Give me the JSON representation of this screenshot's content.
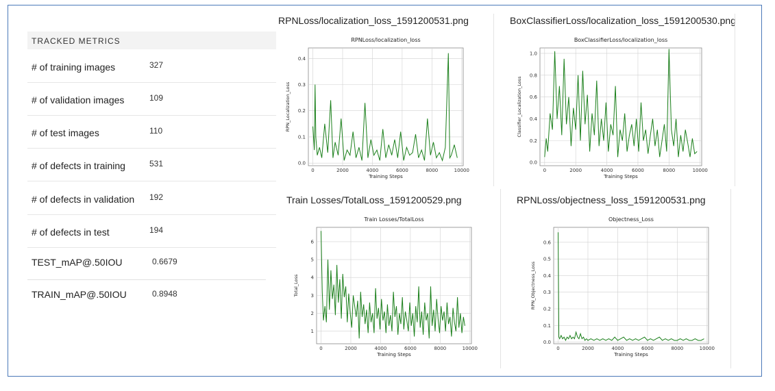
{
  "metrics": {
    "header": "TRACKED METRICS",
    "rows": [
      {
        "label": "# of training images",
        "value": "327"
      },
      {
        "label": "# of validation images",
        "value": "109"
      },
      {
        "label": "# of test images",
        "value": "110"
      },
      {
        "label": "# of defects in training",
        "value": "531"
      },
      {
        "label": "# of defects in validation",
        "value": "192"
      },
      {
        "label": "# of defects in test",
        "value": "194"
      }
    ],
    "map_rows": [
      {
        "label": "TEST_mAP@.50IOU",
        "value": "0.6679"
      },
      {
        "label": "TRAIN_mAP@.50IOU",
        "value": "0.8948"
      }
    ]
  },
  "panels": [
    {
      "filename": "RPNLoss/localization_loss_1591200531.png"
    },
    {
      "filename": "BoxClassifierLoss/localization_loss_1591200530.png"
    },
    {
      "filename": "Train Losses/TotalLoss_1591200529.png"
    },
    {
      "filename": "RPNLoss/objectness_loss_1591200531.png"
    }
  ],
  "colors": {
    "line": "#1a7f1a",
    "frame": "#4a78b8",
    "grid": "#d0d0d0"
  },
  "chart_data": [
    {
      "type": "line",
      "title": "RPNLoss/localization_loss",
      "xlabel": "Training Steps",
      "ylabel": "RPN_Localization_Loss",
      "xlim": [
        -300,
        10100
      ],
      "ylim": [
        -0.01,
        0.44
      ],
      "xticks": [
        0,
        2000,
        4000,
        6000,
        8000,
        10000
      ],
      "yticks": [
        0.0,
        0.1,
        0.2,
        0.3,
        0.4
      ],
      "ytick_labels": [
        "0.0",
        "0.1",
        "0.2",
        "0.3",
        "0.4"
      ],
      "grid": true,
      "series": [
        {
          "x": [
            0,
            100,
            150,
            200,
            300,
            450,
            600,
            800,
            1000,
            1200,
            1350,
            1500,
            1700,
            1900,
            2100,
            2300,
            2500,
            2700,
            2900,
            3100,
            3300,
            3500,
            3700,
            3900,
            4100,
            4300,
            4500,
            4700,
            4900,
            5100,
            5300,
            5500,
            5700,
            5900,
            6100,
            6300,
            6500,
            6700,
            6900,
            7100,
            7300,
            7500,
            7700,
            7900,
            8100,
            8300,
            8500,
            8700,
            8900,
            9100,
            9200,
            9300,
            9500,
            9700
          ],
          "y": [
            0.14,
            0.05,
            0.3,
            0.1,
            0.03,
            0.06,
            0.02,
            0.15,
            0.04,
            0.24,
            0.02,
            0.08,
            0.03,
            0.17,
            0.01,
            0.05,
            0.03,
            0.12,
            0.02,
            0.06,
            0.01,
            0.23,
            0.02,
            0.09,
            0.03,
            0.05,
            0.01,
            0.13,
            0.02,
            0.07,
            0.03,
            0.09,
            0.02,
            0.12,
            0.01,
            0.06,
            0.03,
            0.04,
            0.11,
            0.02,
            0.05,
            0.01,
            0.17,
            0.03,
            0.08,
            0.02,
            0.04,
            0.01,
            0.06,
            0.42,
            0.02,
            0.03,
            0.07,
            0.02
          ]
        }
      ]
    },
    {
      "type": "line",
      "title": "BoxClassifierLoss/localization_loss",
      "xlabel": "Training Steps",
      "ylabel": "Classifier_Localization_Loss",
      "xlim": [
        -300,
        10100
      ],
      "ylim": [
        -0.03,
        1.05
      ],
      "xticks": [
        0,
        2000,
        4000,
        6000,
        8000,
        10000
      ],
      "yticks": [
        0.0,
        0.2,
        0.4,
        0.6,
        0.8,
        1.0
      ],
      "ytick_labels": [
        "0.0",
        "0.2",
        "0.4",
        "0.6",
        "0.8",
        "1.0"
      ],
      "grid": true,
      "series": [
        {
          "x": [
            0,
            100,
            200,
            350,
            500,
            650,
            800,
            950,
            1100,
            1250,
            1400,
            1550,
            1700,
            1850,
            2000,
            2150,
            2300,
            2450,
            2600,
            2750,
            2900,
            3050,
            3200,
            3350,
            3500,
            3650,
            3800,
            3950,
            4100,
            4250,
            4400,
            4550,
            4700,
            4850,
            5000,
            5150,
            5300,
            5450,
            5600,
            5750,
            5900,
            6050,
            6200,
            6350,
            6500,
            6650,
            6800,
            6950,
            7100,
            7250,
            7400,
            7550,
            7700,
            7850,
            8000,
            8150,
            8300,
            8450,
            8600,
            8750,
            8900,
            9050,
            9200,
            9350,
            9500,
            9650,
            9800
          ],
          "y": [
            0.05,
            0.22,
            0.1,
            0.45,
            0.3,
            1.02,
            0.4,
            0.7,
            0.25,
            0.95,
            0.35,
            0.6,
            0.15,
            0.5,
            0.3,
            0.8,
            0.2,
            0.84,
            0.35,
            0.62,
            0.1,
            0.45,
            0.25,
            0.75,
            0.15,
            0.4,
            0.2,
            0.55,
            0.1,
            0.35,
            0.25,
            0.7,
            0.05,
            0.3,
            0.2,
            0.45,
            0.1,
            0.25,
            0.35,
            0.15,
            0.4,
            0.1,
            0.55,
            0.2,
            0.3,
            0.08,
            0.25,
            0.4,
            0.15,
            0.3,
            0.05,
            0.2,
            0.35,
            0.1,
            1.04,
            0.3,
            0.15,
            0.4,
            0.05,
            0.25,
            0.1,
            0.3,
            0.18,
            0.05,
            0.22,
            0.08,
            0.1
          ]
        }
      ]
    },
    {
      "type": "line",
      "title": "Train Losses/TotalLoss",
      "xlabel": "Training Steps",
      "ylabel": "Total_Loss",
      "xlim": [
        -300,
        10100
      ],
      "ylim": [
        0.3,
        6.8
      ],
      "xticks": [
        0,
        2000,
        4000,
        6000,
        8000,
        10000
      ],
      "yticks": [
        1,
        2,
        3,
        4,
        5,
        6
      ],
      "ytick_labels": [
        "1",
        "2",
        "3",
        "4",
        "5",
        "6"
      ],
      "grid": true,
      "series": [
        {
          "x": [
            0,
            80,
            160,
            260,
            360,
            460,
            560,
            660,
            760,
            860,
            960,
            1060,
            1160,
            1260,
            1360,
            1460,
            1560,
            1660,
            1760,
            1860,
            1960,
            2060,
            2160,
            2260,
            2360,
            2460,
            2560,
            2660,
            2760,
            2860,
            2960,
            3060,
            3160,
            3260,
            3360,
            3460,
            3560,
            3660,
            3760,
            3860,
            3960,
            4060,
            4160,
            4260,
            4360,
            4460,
            4560,
            4660,
            4760,
            4860,
            4960,
            5060,
            5160,
            5260,
            5360,
            5460,
            5560,
            5660,
            5760,
            5860,
            5960,
            6060,
            6160,
            6260,
            6360,
            6460,
            6560,
            6660,
            6760,
            6860,
            6960,
            7060,
            7160,
            7260,
            7360,
            7460,
            7560,
            7660,
            7760,
            7860,
            7960,
            8060,
            8160,
            8260,
            8360,
            8460,
            8560,
            8660,
            8760,
            8860,
            8960,
            9060,
            9160,
            9260,
            9360,
            9460,
            9560,
            9660
          ],
          "y": [
            6.6,
            3.2,
            1.6,
            2.4,
            1.5,
            5.0,
            2.2,
            4.4,
            2.8,
            3.6,
            1.9,
            4.7,
            2.6,
            3.9,
            1.7,
            4.2,
            2.9,
            3.5,
            1.5,
            3.1,
            2.0,
            1.2,
            3.0,
            2.4,
            1.8,
            2.7,
            0.6,
            3.2,
            1.8,
            2.5,
            1.4,
            2.2,
            0.9,
            2.6,
            1.5,
            2.0,
            0.9,
            3.4,
            1.7,
            2.3,
            1.1,
            2.8,
            1.6,
            2.1,
            0.9,
            2.5,
            1.3,
            1.9,
            1.0,
            3.2,
            1.8,
            2.4,
            0.8,
            2.0,
            1.4,
            2.9,
            1.1,
            2.1,
            1.6,
            1.0,
            2.6,
            1.3,
            2.0,
            0.7,
            2.4,
            1.5,
            3.5,
            1.2,
            2.1,
            0.8,
            2.6,
            1.6,
            2.0,
            0.6,
            3.5,
            1.3,
            2.2,
            1.0,
            2.8,
            1.7,
            0.9,
            2.4,
            1.6,
            2.1,
            1.0,
            2.6,
            1.4,
            1.8,
            0.7,
            2.3,
            1.5,
            1.0,
            2.9,
            1.2,
            2.0,
            0.9,
            1.8,
            1.3
          ]
        }
      ]
    },
    {
      "type": "line",
      "title": "Objectness_Loss",
      "xlabel": "Training Steps",
      "ylabel": "RPN_Objectness_Loss",
      "xlim": [
        -300,
        10100
      ],
      "ylim": [
        -0.01,
        0.69
      ],
      "xticks": [
        0,
        2000,
        4000,
        6000,
        8000,
        10000
      ],
      "yticks": [
        0.0,
        0.1,
        0.2,
        0.3,
        0.4,
        0.5,
        0.6
      ],
      "ytick_labels": [
        "0.0",
        "0.1",
        "0.2",
        "0.3",
        "0.4",
        "0.5",
        "0.6"
      ],
      "grid": true,
      "series": [
        {
          "x": [
            0,
            50,
            100,
            200,
            300,
            400,
            500,
            600,
            700,
            800,
            900,
            1000,
            1100,
            1200,
            1300,
            1400,
            1500,
            1600,
            1700,
            1800,
            1900,
            2000,
            2200,
            2400,
            2600,
            2800,
            3000,
            3200,
            3400,
            3600,
            3800,
            4000,
            4200,
            4400,
            4600,
            4800,
            5000,
            5200,
            5400,
            5600,
            5800,
            6000,
            6200,
            6400,
            6600,
            6800,
            7000,
            7200,
            7400,
            7600,
            7800,
            8000,
            8200,
            8400,
            8600,
            8800,
            9000,
            9200,
            9400,
            9600,
            9800
          ],
          "y": [
            0.66,
            0.03,
            0.02,
            0.04,
            0.02,
            0.03,
            0.01,
            0.03,
            0.02,
            0.04,
            0.02,
            0.03,
            0.02,
            0.06,
            0.03,
            0.02,
            0.05,
            0.02,
            0.03,
            0.01,
            0.02,
            0.01,
            0.02,
            0.01,
            0.02,
            0.01,
            0.02,
            0.01,
            0.02,
            0.01,
            0.03,
            0.01,
            0.02,
            0.03,
            0.01,
            0.02,
            0.01,
            0.02,
            0.01,
            0.02,
            0.03,
            0.01,
            0.02,
            0.01,
            0.02,
            0.03,
            0.01,
            0.02,
            0.01,
            0.02,
            0.01,
            0.01,
            0.02,
            0.01,
            0.02,
            0.01,
            0.01,
            0.02,
            0.01,
            0.01,
            0.02
          ]
        }
      ]
    }
  ]
}
